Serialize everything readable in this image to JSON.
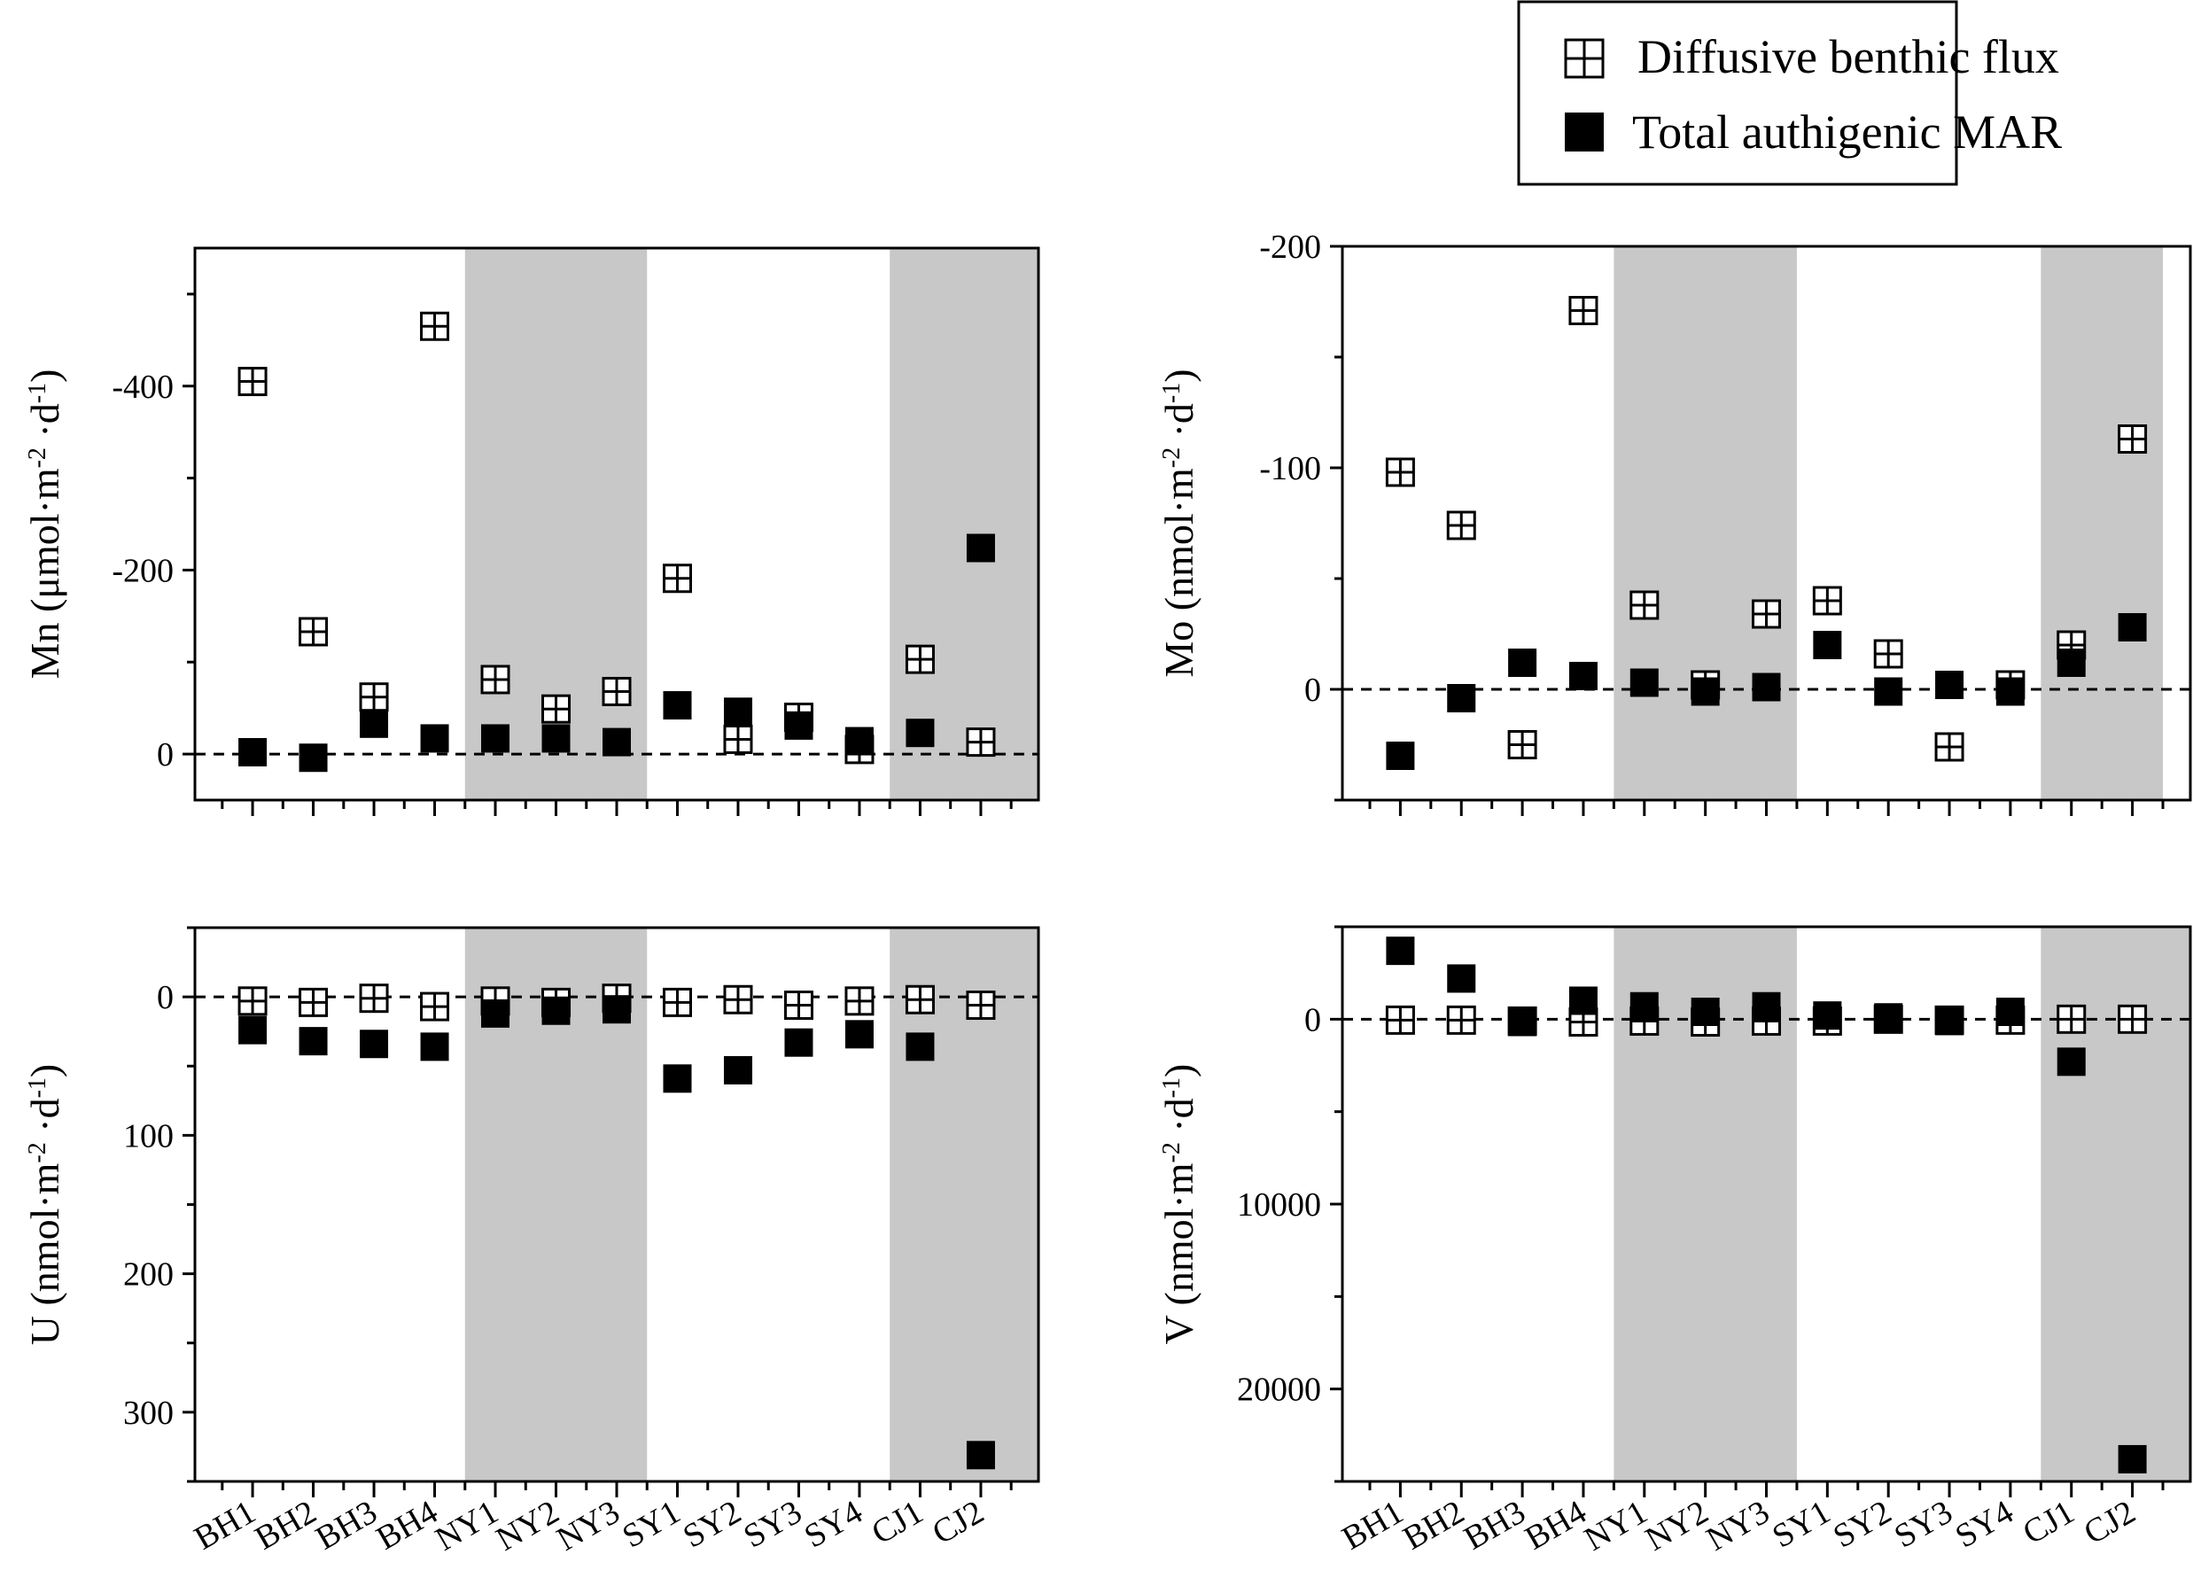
{
  "legend": {
    "diffusive_label": "Diffusive benthic flux",
    "mar_label": "Total authigenic MAR"
  },
  "colors": {
    "shade": "#c8c8c8",
    "marker": "#000000"
  },
  "chart_data": [
    {
      "type": "scatter",
      "id": "mn",
      "ylabel_main": "Mn (μmol·m",
      "ylabel_sup1": "-2",
      "ylabel_mid": " ·d",
      "ylabel_sup2": "-1",
      "ylabel_end": ")",
      "y_inverted": true,
      "ylim": [
        50,
        -550
      ],
      "yticks": [
        0,
        -200,
        -400
      ],
      "ytick_labels": [
        "0",
        "-200",
        "-400"
      ],
      "categories": [
        "BH1",
        "BH2",
        "BH3",
        "BH4",
        "NY1",
        "NY2",
        "NY3",
        "SY1",
        "SY2",
        "SY3",
        "SY4",
        "CJ1",
        "CJ2"
      ],
      "shaded_ranges": [
        [
          3.5,
          6.5
        ],
        [
          10.5,
          12.95
        ]
      ],
      "series": [
        {
          "name": "Diffusive benthic flux",
          "marker": "grid-square",
          "values": [
            -405,
            -133,
            -62,
            -465,
            -81,
            -49,
            -68,
            -191,
            -16,
            -40,
            -5,
            -103,
            -13
          ]
        },
        {
          "name": "Total authigenic MAR",
          "marker": "filled-square",
          "values": [
            -2,
            4,
            -33,
            -17,
            -17,
            -17,
            -13,
            -53,
            -46,
            -31,
            -14,
            -23,
            -224
          ]
        }
      ]
    },
    {
      "type": "scatter",
      "id": "mo",
      "ylabel_main": "Mo (nmol·m",
      "ylabel_sup1": "-2",
      "ylabel_mid": " ·d",
      "ylabel_sup2": "-1",
      "ylabel_end": ")",
      "y_inverted": true,
      "ylim": [
        50,
        -200
      ],
      "yticks": [
        0,
        -100,
        -200
      ],
      "ytick_labels": [
        "0",
        "-100",
        "-200"
      ],
      "categories": [
        "BH1",
        "BH2",
        "BH3",
        "BH4",
        "NY1",
        "NY2",
        "NY3",
        "SY1",
        "SY2",
        "SY3",
        "SY4",
        "CJ1",
        "CJ2"
      ],
      "shaded_ranges": [
        [
          3.5,
          6.5
        ],
        [
          10.5,
          12.5
        ]
      ],
      "series": [
        {
          "name": "Diffusive benthic flux",
          "marker": "grid-square",
          "values": [
            -98,
            -74,
            25,
            -171,
            -38,
            -2,
            -34,
            -40,
            -16,
            26,
            -2,
            -20,
            -113
          ]
        },
        {
          "name": "Total authigenic MAR",
          "marker": "filled-square",
          "values": [
            30,
            4,
            -12,
            -6,
            -3,
            1,
            -1,
            -20,
            1,
            -2,
            1,
            -12,
            -28
          ]
        }
      ]
    },
    {
      "type": "scatter",
      "id": "u",
      "ylabel_main": "U (nmol·m",
      "ylabel_sup1": "-2",
      "ylabel_mid": " ·d",
      "ylabel_sup2": "-1",
      "ylabel_end": ")",
      "y_inverted": false,
      "ylim": [
        -50,
        350
      ],
      "yticks": [
        0,
        100,
        200,
        300
      ],
      "ytick_labels": [
        "0",
        "100",
        "200",
        "300"
      ],
      "categories": [
        "BH1",
        "BH2",
        "BH3",
        "BH4",
        "NY1",
        "NY2",
        "NY3",
        "SY1",
        "SY2",
        "SY3",
        "SY4",
        "CJ1",
        "CJ2"
      ],
      "shaded_ranges": [
        [
          3.5,
          6.5
        ],
        [
          10.5,
          12.95
        ]
      ],
      "series": [
        {
          "name": "Diffusive benthic flux",
          "marker": "grid-square",
          "values": [
            3,
            4,
            1,
            7,
            3,
            4,
            1,
            4,
            2,
            6,
            3,
            2,
            6
          ]
        },
        {
          "name": "Total authigenic MAR",
          "marker": "filled-square",
          "values": [
            24,
            32,
            34,
            36,
            12,
            10,
            9,
            59,
            53,
            33,
            27,
            36,
            331
          ]
        }
      ]
    },
    {
      "type": "scatter",
      "id": "v",
      "ylabel_main": "V (nmol·m",
      "ylabel_sup1": "-2",
      "ylabel_mid": " ·d",
      "ylabel_sup2": "-1",
      "ylabel_end": ")",
      "y_inverted": false,
      "ylim": [
        -5000,
        25000
      ],
      "yticks": [
        0,
        10000,
        20000
      ],
      "ytick_labels": [
        "0",
        "10000",
        "20000"
      ],
      "categories": [
        "BH1",
        "BH2",
        "BH3",
        "BH4",
        "NY1",
        "NY2",
        "NY3",
        "SY1",
        "SY2",
        "SY3",
        "SY4",
        "CJ1",
        "CJ2"
      ],
      "shaded_ranges": [
        [
          3.5,
          6.5
        ],
        [
          10.5,
          12.95
        ]
      ],
      "series": [
        {
          "name": "Diffusive benthic flux",
          "marker": "grid-square",
          "values": [
            50,
            50,
            100,
            150,
            100,
            150,
            100,
            100,
            0,
            50,
            50,
            0,
            0
          ]
        },
        {
          "name": "Total authigenic MAR",
          "marker": "filled-square",
          "values": [
            -3700,
            -2200,
            150,
            -1000,
            -700,
            -400,
            -700,
            -200,
            -100,
            100,
            -400,
            2300,
            23800
          ]
        }
      ]
    }
  ]
}
